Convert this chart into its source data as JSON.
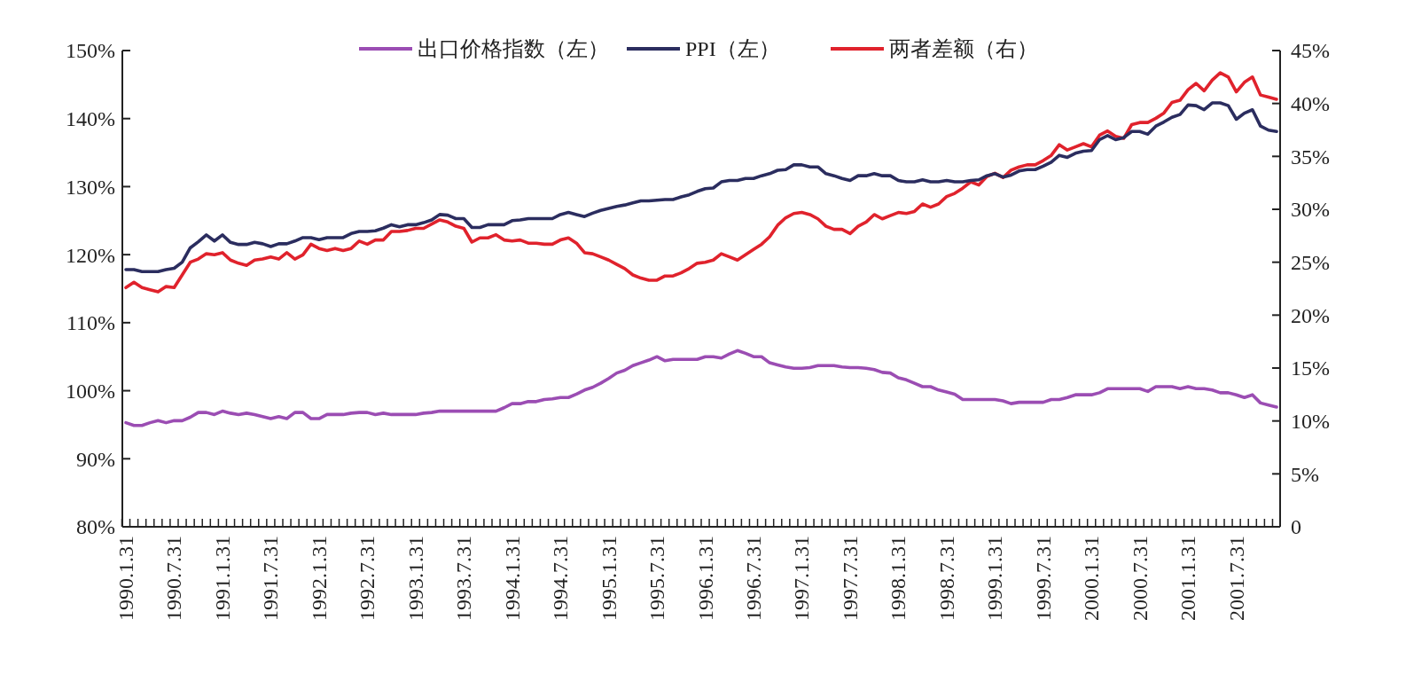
{
  "chart_data": {
    "type": "line",
    "categories": [
      "1990.1.31",
      null,
      null,
      null,
      null,
      null,
      "1990.7.31",
      null,
      null,
      null,
      null,
      null,
      "1991.1.31",
      null,
      null,
      null,
      null,
      null,
      "1991.7.31",
      null,
      null,
      null,
      null,
      null,
      "1992.1.31",
      null,
      null,
      null,
      null,
      null,
      "1992.7.31",
      null,
      null,
      null,
      null,
      null,
      "1993.1.31",
      null,
      null,
      null,
      null,
      null,
      "1993.7.31",
      null,
      null,
      null,
      null,
      null,
      "1994.1.31",
      null,
      null,
      null,
      null,
      null,
      "1994.7.31",
      null,
      null,
      null,
      null,
      null,
      "1995.1.31",
      null,
      null,
      null,
      null,
      null,
      "1995.7.31",
      null,
      null,
      null,
      null,
      null,
      "1996.1.31",
      null,
      null,
      null,
      null,
      null,
      "1996.7.31",
      null,
      null,
      null,
      null,
      null,
      "1997.1.31",
      null,
      null,
      null,
      null,
      null,
      "1997.7.31",
      null,
      null,
      null,
      null,
      null,
      "1998.1.31",
      null,
      null,
      null,
      null,
      null,
      "1998.7.31",
      null,
      null,
      null,
      null,
      null,
      "1999.1.31",
      null,
      null,
      null,
      null,
      null,
      "1999.7.31",
      null,
      null,
      null,
      null,
      null,
      "2000.1.31",
      null,
      null,
      null,
      null,
      null,
      "2000.7.31",
      null,
      null,
      null,
      null,
      null,
      "2001.1.31",
      null,
      null,
      null,
      null,
      null,
      "2001.7.31",
      null,
      null,
      null,
      null,
      null
    ],
    "series": [
      {
        "name": "出口价格指数（左）",
        "color": "#9b4db3",
        "values": [
          95.3,
          94.9,
          94.9,
          95.3,
          95.6,
          95.3,
          95.6,
          95.6,
          96.1,
          96.8,
          96.8,
          96.5,
          97.0,
          96.7,
          96.5,
          96.7,
          96.5,
          96.2,
          95.9,
          96.2,
          95.9,
          96.8,
          96.8,
          95.9,
          95.9,
          96.5,
          96.5,
          96.5,
          96.7,
          96.8,
          96.8,
          96.5,
          96.7,
          96.5,
          96.5,
          96.5,
          96.5,
          96.7,
          96.8,
          97.0,
          97.0,
          97.0,
          97.0,
          97.0,
          97.0,
          97.0,
          97.0,
          97.5,
          98.1,
          98.1,
          98.4,
          98.4,
          98.7,
          98.8,
          99.0,
          99.0,
          99.5,
          100.1,
          100.5,
          101.1,
          101.8,
          102.6,
          103.0,
          103.7,
          104.1,
          104.5,
          105.0,
          104.4,
          104.6,
          104.6,
          104.6,
          104.6,
          105.0,
          105.0,
          104.8,
          105.4,
          105.9,
          105.5,
          105.0,
          105.0,
          104.1,
          103.8,
          103.5,
          103.3,
          103.3,
          103.4,
          103.7,
          103.7,
          103.7,
          103.5,
          103.4,
          103.4,
          103.3,
          103.1,
          102.7,
          102.6,
          101.9,
          101.6,
          101.1,
          100.6,
          100.6,
          100.1,
          99.8,
          99.5,
          98.7,
          98.7,
          98.7,
          98.7,
          98.7,
          98.5,
          98.1,
          98.3,
          98.3,
          98.3,
          98.3,
          98.7,
          98.7,
          99.0,
          99.4,
          99.4,
          99.4,
          99.7,
          100.3,
          100.3,
          100.3,
          100.3,
          100.3,
          99.9,
          100.6,
          100.6,
          100.6,
          100.3,
          100.6,
          100.3,
          100.3,
          100.1,
          99.7,
          99.7,
          99.4,
          99.0,
          99.4,
          98.2,
          97.9,
          97.6
        ]
      },
      {
        "name": "PPI（左）",
        "color": "#2b2d5f",
        "values": [
          117.8,
          117.8,
          117.5,
          117.5,
          117.5,
          117.8,
          118.0,
          118.9,
          121.0,
          121.9,
          122.9,
          122.0,
          122.9,
          121.8,
          121.5,
          121.5,
          121.8,
          121.6,
          121.2,
          121.6,
          121.6,
          122.0,
          122.5,
          122.5,
          122.2,
          122.5,
          122.5,
          122.5,
          123.1,
          123.4,
          123.4,
          123.5,
          123.9,
          124.4,
          124.1,
          124.4,
          124.4,
          124.7,
          125.1,
          125.9,
          125.8,
          125.3,
          125.3,
          124.0,
          124.0,
          124.4,
          124.4,
          124.4,
          125.0,
          125.1,
          125.3,
          125.3,
          125.3,
          125.3,
          125.9,
          126.2,
          125.9,
          125.6,
          126.1,
          126.5,
          126.8,
          127.1,
          127.3,
          127.6,
          127.9,
          127.9,
          128.0,
          128.1,
          128.1,
          128.5,
          128.8,
          129.3,
          129.7,
          129.8,
          130.7,
          130.9,
          130.9,
          131.2,
          131.2,
          131.6,
          131.9,
          132.4,
          132.5,
          133.2,
          133.2,
          132.9,
          132.9,
          131.9,
          131.6,
          131.2,
          130.9,
          131.6,
          131.6,
          131.9,
          131.6,
          131.6,
          130.9,
          130.7,
          130.7,
          131.0,
          130.7,
          130.7,
          130.9,
          130.7,
          130.7,
          130.9,
          131.0,
          131.6,
          131.9,
          131.4,
          131.7,
          132.3,
          132.5,
          132.5,
          133.0,
          133.6,
          134.6,
          134.3,
          134.9,
          135.2,
          135.3,
          136.9,
          137.5,
          136.9,
          137.2,
          138.1,
          138.1,
          137.7,
          138.9,
          139.5,
          140.2,
          140.6,
          142.0,
          141.9,
          141.3,
          142.3,
          142.3,
          141.9,
          139.9,
          140.8,
          141.3,
          138.9,
          138.3,
          138.1
        ]
      },
      {
        "name": "两者差额（右）",
        "color": "#e0222c",
        "axis": "y2",
        "values": [
          22.6,
          23.1,
          22.6,
          22.4,
          22.2,
          22.7,
          22.6,
          23.8,
          25.0,
          25.3,
          25.8,
          25.7,
          25.9,
          25.2,
          24.9,
          24.7,
          25.2,
          25.3,
          25.5,
          25.3,
          25.9,
          25.3,
          25.7,
          26.7,
          26.3,
          26.1,
          26.3,
          26.1,
          26.3,
          27.0,
          26.7,
          27.1,
          27.1,
          27.9,
          27.9,
          28.0,
          28.2,
          28.2,
          28.6,
          29.0,
          28.8,
          28.4,
          28.2,
          26.9,
          27.3,
          27.3,
          27.6,
          27.1,
          27.0,
          27.1,
          26.8,
          26.8,
          26.7,
          26.7,
          27.1,
          27.3,
          26.8,
          25.9,
          25.8,
          25.5,
          25.2,
          24.8,
          24.4,
          23.8,
          23.5,
          23.3,
          23.3,
          23.7,
          23.7,
          24.0,
          24.4,
          24.9,
          25.0,
          25.2,
          25.8,
          25.5,
          25.2,
          25.7,
          26.2,
          26.7,
          27.4,
          28.5,
          29.2,
          29.6,
          29.7,
          29.5,
          29.1,
          28.4,
          28.1,
          28.1,
          27.7,
          28.4,
          28.8,
          29.5,
          29.1,
          29.4,
          29.7,
          29.6,
          29.8,
          30.5,
          30.2,
          30.5,
          31.2,
          31.5,
          32.0,
          32.6,
          32.3,
          33.1,
          33.4,
          33.0,
          33.7,
          34.0,
          34.2,
          34.2,
          34.6,
          35.1,
          36.1,
          35.6,
          35.9,
          36.2,
          35.9,
          37.0,
          37.4,
          36.9,
          36.7,
          38.0,
          38.2,
          38.2,
          38.6,
          39.1,
          40.1,
          40.3,
          41.3,
          41.9,
          41.2,
          42.2,
          42.9,
          42.5,
          41.1,
          42.0,
          42.5,
          40.8,
          40.6,
          40.4
        ]
      }
    ],
    "ylim": [
      80,
      150
    ],
    "yticks": [
      {
        "value": 80,
        "label": "80%"
      },
      {
        "value": 90,
        "label": "90%"
      },
      {
        "value": 100,
        "label": "100%"
      },
      {
        "value": 110,
        "label": "110%"
      },
      {
        "value": 120,
        "label": "120%"
      },
      {
        "value": 130,
        "label": "130%"
      },
      {
        "value": 140,
        "label": "140%"
      },
      {
        "value": 150,
        "label": "150%"
      }
    ],
    "y2lim": [
      0,
      45
    ],
    "y2ticks": [
      0,
      {
        "value": 5,
        "label": "5%"
      },
      {
        "value": 10,
        "label": "10%"
      },
      {
        "value": 15,
        "label": "15%"
      },
      {
        "value": 20,
        "label": "20%"
      },
      {
        "value": 25,
        "label": "25%"
      },
      {
        "value": 30,
        "label": "30%"
      },
      {
        "value": 35,
        "label": "35%"
      },
      {
        "value": 40,
        "label": "40%"
      },
      {
        "value": 45,
        "label": "45%"
      }
    ],
    "legend": "top",
    "grid": false,
    "marker": "none",
    "line_style": "solid"
  }
}
